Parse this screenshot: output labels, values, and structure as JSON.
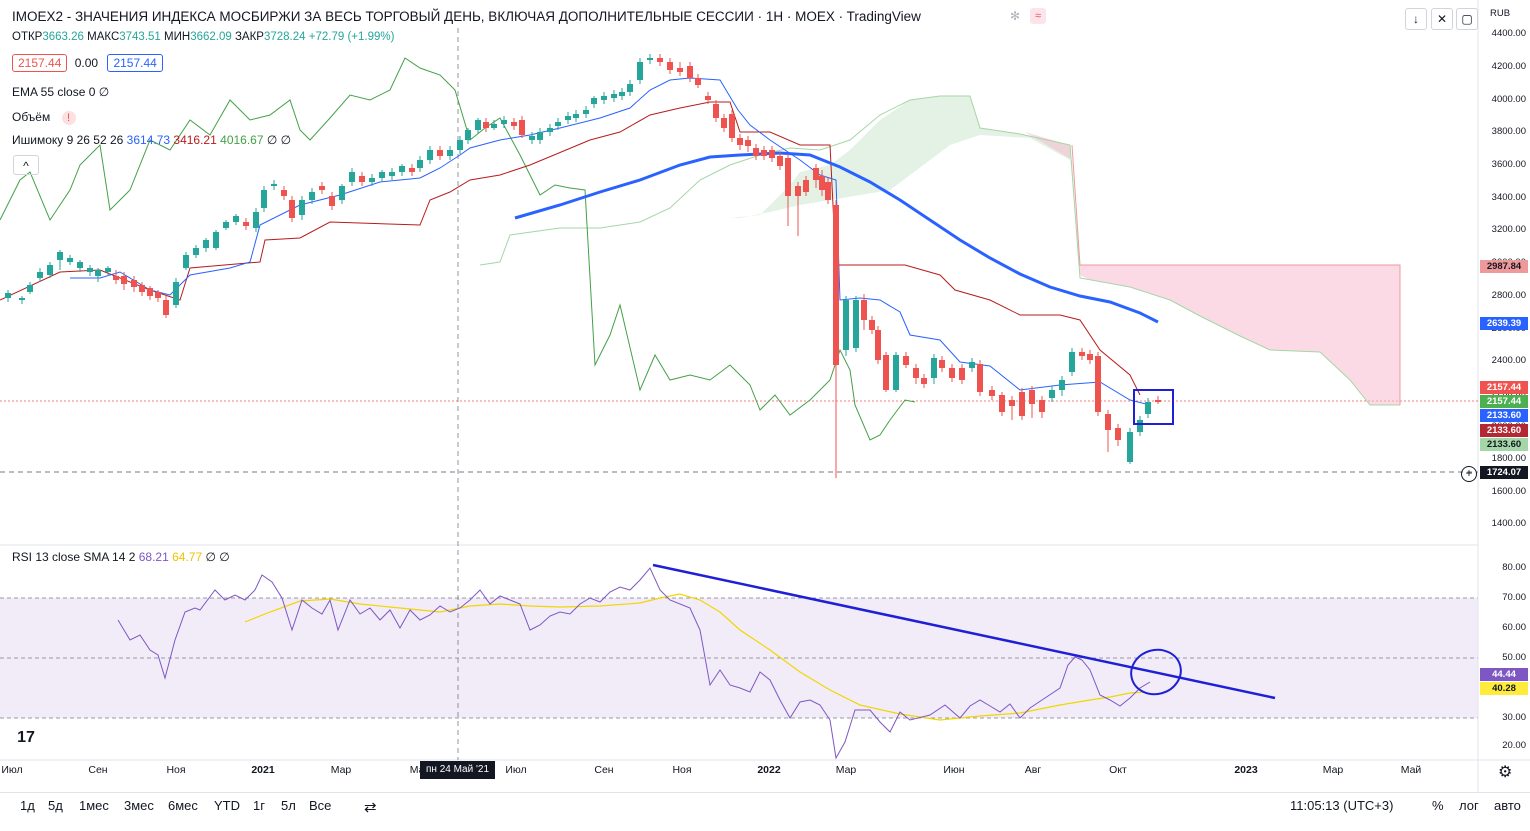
{
  "header": {
    "title": "IMOEX2 - ЗНАЧЕНИЯ ИНДЕКСА МОСБИРЖИ ЗА ВЕСЬ ТОРГОВЫЙ ДЕНЬ, ВКЛЮЧАЯ ДОПОЛНИТЕЛЬНЫЕ СЕССИИ · 1Н · MOEX · TradingView",
    "currency": "RUB",
    "ohlc": {
      "open_label": "ОТКР",
      "open": "3663.26",
      "high_label": "МАКС",
      "high": "3743.51",
      "low_label": "МИН",
      "low": "3662.09",
      "close_label": "ЗАКР",
      "close": "3728.24",
      "change": "+72.79 (+1.99%)"
    },
    "bid": "2157.44",
    "spread": "0.00",
    "ask": "2157.44"
  },
  "indicators": {
    "ema": "EMA 55 close 0  ∅",
    "volume": "Объём",
    "volume_warning": "!",
    "ichimoku_label": "Ишимоку 9 26 52 26",
    "ichimoku_v1": "3614.73",
    "ichimoku_v2": "3416.21",
    "ichimoku_v3": "4016.67",
    "ichimoku_tail": "∅ ∅",
    "collapse": "^"
  },
  "rsi": {
    "label": "RSI 13 close SMA 14 2",
    "v1": "68.21",
    "v2": "64.77",
    "tail": "∅ ∅"
  },
  "price_axis": {
    "ticks": [
      "4400.00",
      "4200.00",
      "4000.00",
      "3800.00",
      "3600.00",
      "3400.00",
      "3200.00",
      "3000.00",
      "2800.00",
      "2600.00",
      "2400.00",
      "2200.00",
      "2000.00",
      "1800.00",
      "1600.00",
      "1400.00"
    ],
    "labels": [
      {
        "text": "2987.84",
        "color": "#ef9a9a"
      },
      {
        "text": "2639.39",
        "color": "#2962ff"
      },
      {
        "text": "2157.44",
        "color": "#ef5350"
      },
      {
        "text": "2157.44",
        "color": "#4caf50"
      },
      {
        "text": "2133.60",
        "color": "#2962ff"
      },
      {
        "text": "2133.60",
        "color": "#b22833"
      },
      {
        "text": "2133.60",
        "color": "#a5d6a7"
      },
      {
        "text": "1724.07",
        "color": "#131722"
      }
    ]
  },
  "rsi_axis": {
    "ticks": [
      "80.00",
      "70.00",
      "60.00",
      "50.00",
      "40.00",
      "30.00",
      "20.00"
    ],
    "labels": [
      {
        "text": "44.44",
        "color": "#7e57c2"
      },
      {
        "text": "40.28",
        "color": "#ffeb3b"
      }
    ]
  },
  "time_axis": {
    "ticks": [
      "Июл",
      "Сен",
      "Ноя",
      "2021",
      "Мар",
      "Май",
      "Июл",
      "Сен",
      "Ноя",
      "2022",
      "Мар",
      "Июн",
      "Авг",
      "Окт",
      "2023",
      "Мар",
      "Май"
    ],
    "crosshair_label": "пн 24 Май '21"
  },
  "toolbar": {
    "ranges": [
      "1д",
      "5д",
      "1мес",
      "3мес",
      "6мес",
      "YTD",
      "1г",
      "5л",
      "Все"
    ],
    "time": "11:05:13 (UTC+3)",
    "percent": "%",
    "log": "лог",
    "auto": "авто"
  },
  "colors": {
    "up": "#26a69a",
    "down": "#ef5350",
    "ema": "#2962ff",
    "annotation": "#1f1fd6",
    "rsi": "#7e57c2",
    "rsi_sma": "#ffeb3b"
  }
}
